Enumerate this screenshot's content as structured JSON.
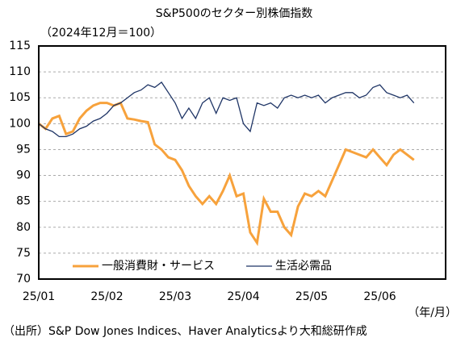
{
  "chart_data": {
    "type": "line",
    "title": "S&P500のセクター別株価指数",
    "subtitle": "（2024年12月＝100）",
    "x_unit": "（年/月）",
    "source": "（出所）S&P Dow Jones Indices、Haver Analyticsより大和総研作成",
    "categories": [
      "25/01",
      null,
      null,
      null,
      null,
      null,
      null,
      null,
      null,
      null,
      "25/02",
      null,
      null,
      null,
      null,
      null,
      null,
      null,
      null,
      null,
      "25/03",
      null,
      null,
      null,
      null,
      null,
      null,
      null,
      null,
      null,
      "25/04",
      null,
      null,
      null,
      null,
      null,
      null,
      null,
      null,
      null,
      "25/05",
      null,
      null,
      null,
      null,
      null,
      null,
      null,
      null,
      null,
      "25/06",
      null,
      null,
      null,
      null,
      null
    ],
    "series": [
      {
        "name": "一般消費財・サービス",
        "color": "#f7a23c",
        "values": [
          100,
          99,
          101,
          101.5,
          98,
          98.5,
          101,
          102.5,
          103.5,
          104,
          104,
          103.5,
          104,
          101,
          100.8,
          100.5,
          100.3,
          96,
          95,
          93.5,
          93,
          91,
          88,
          86,
          84.5,
          86,
          84.5,
          87,
          90,
          86,
          86.5,
          79,
          77,
          85.5,
          83,
          83,
          80,
          78.5,
          84,
          86.5,
          86,
          87,
          86,
          89,
          92,
          95,
          94.5,
          94,
          93.5,
          95,
          93.5,
          92,
          94,
          95,
          94,
          93
        ]
      },
      {
        "name": "生活必需品",
        "color": "#1f3566",
        "values": [
          100,
          99,
          98.5,
          97.5,
          97.5,
          98,
          99,
          99.5,
          100.5,
          101,
          102,
          103.5,
          104,
          105,
          106,
          106.5,
          107.5,
          107,
          108,
          106,
          104,
          101,
          103,
          101,
          104,
          105,
          102,
          105,
          104.5,
          105,
          100,
          98.5,
          104,
          103.5,
          104,
          103,
          105,
          105.5,
          105,
          105.5,
          105,
          105.5,
          104,
          105,
          105.5,
          106,
          106,
          105,
          105.5,
          107,
          107.5,
          106,
          105.5,
          105,
          105.5,
          104
        ]
      }
    ],
    "ylim": [
      70,
      115
    ],
    "yticks": [
      70,
      75,
      80,
      85,
      90,
      95,
      100,
      105,
      110,
      115
    ],
    "grid": true,
    "legend": "bottom-left"
  }
}
